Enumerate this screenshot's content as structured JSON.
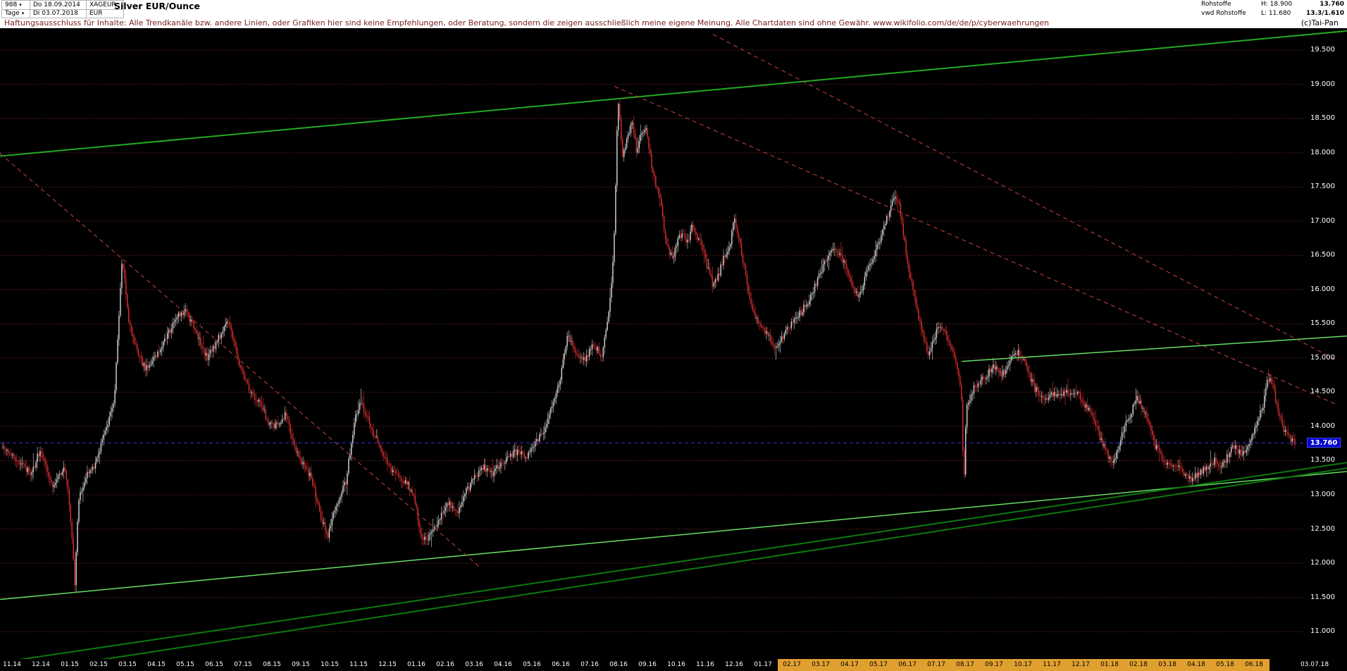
{
  "header": {
    "bars_count": "988",
    "date_from": "Do 18.09.2014",
    "symbol": "XAGEUR",
    "period": "Tage",
    "date_to": "Di 03.07.2018",
    "currency": "EUR",
    "title": "Silver EUR/Ounce",
    "right": {
      "line1": {
        "label": "Rohstoffe",
        "high": "H: 18.900",
        "value": "13.760"
      },
      "line2": {
        "label": "vwd Rohstoffe",
        "low": "L: 11.680",
        "value": "13.3/1.610"
      }
    }
  },
  "disclaimer": {
    "text": "Haftungsausschluss für Inhalte: Alle Trendkanäle bzw. andere Linien, oder Grafiken hier sind keine Empfehlungen, oder Beratung, sondern die zeigen ausschließlich meine eigene Meinung. Alle Chartdaten sind ohne Gewähr.",
    "url": "www.wikifolio.com/de/de/p/cyberwaehrungen",
    "copyright": "(c)Tai-Pan"
  },
  "chart_data": {
    "type": "candlestick",
    "title": "Silver EUR/Ounce",
    "timeframe": "Tage",
    "date_range": [
      "18.09.2014",
      "03.07.2018"
    ],
    "high": 18.9,
    "low": 11.68,
    "last_price": 13.76,
    "last_price_label": "13.760",
    "ylim": [
      10.6,
      19.82
    ],
    "grid": true,
    "y_ticks": [
      19.5,
      19.0,
      18.5,
      18.0,
      17.5,
      17.0,
      16.5,
      16.0,
      15.5,
      15.0,
      14.5,
      14.0,
      13.5,
      13.0,
      12.5,
      12.0,
      11.5,
      11.0
    ],
    "y_tick_labels": [
      "19.500",
      "19.000",
      "18.500",
      "18.000",
      "17.500",
      "17.000",
      "16.500",
      "16.000",
      "15.500",
      "15.000",
      "14.500",
      "14.000",
      "13.500",
      "13.000",
      "12.500",
      "12.000",
      "11.500",
      "11.000"
    ],
    "x_labels": [
      "11.14",
      "12.14",
      "01.15",
      "02.15",
      "03.15",
      "04.15",
      "05.15",
      "06.15",
      "07.15",
      "08.15",
      "09.15",
      "10.15",
      "11.15",
      "12.15",
      "01.16",
      "02.16",
      "03.16",
      "04.16",
      "05.16",
      "06.16",
      "07.16",
      "08.16",
      "09.16",
      "10.16",
      "11.16",
      "12.16",
      "01.17",
      "02.17",
      "03.17",
      "04.17",
      "05.17",
      "06.17",
      "07.17",
      "08.17",
      "09.17",
      "10.17",
      "11.17",
      "12.17",
      "01.18",
      "02.18",
      "03.18",
      "04.18",
      "05.18",
      "06.18"
    ],
    "x_end_label": "03.07.18",
    "x_highlight_from": 27,
    "price_path": [
      [
        0.0,
        13.7
      ],
      [
        0.012,
        13.5
      ],
      [
        0.0219,
        13.3
      ],
      [
        0.0286,
        13.65
      ],
      [
        0.0385,
        13.15
      ],
      [
        0.0485,
        13.4
      ],
      [
        0.0538,
        12.3
      ],
      [
        0.0558,
        11.68
      ],
      [
        0.0584,
        12.9
      ],
      [
        0.0651,
        13.3
      ],
      [
        0.0717,
        13.45
      ],
      [
        0.0797,
        13.95
      ],
      [
        0.0863,
        14.4
      ],
      [
        0.0923,
        16.48
      ],
      [
        0.0969,
        15.6
      ],
      [
        0.1036,
        15.1
      ],
      [
        0.1102,
        14.85
      ],
      [
        0.1169,
        15.0
      ],
      [
        0.1262,
        15.3
      ],
      [
        0.1348,
        15.6
      ],
      [
        0.1414,
        15.68
      ],
      [
        0.1501,
        15.35
      ],
      [
        0.158,
        15.0
      ],
      [
        0.166,
        15.25
      ],
      [
        0.1746,
        15.58
      ],
      [
        0.1833,
        14.9
      ],
      [
        0.1912,
        14.5
      ],
      [
        0.1992,
        14.35
      ],
      [
        0.2058,
        14.05
      ],
      [
        0.2125,
        14.0
      ],
      [
        0.2191,
        14.2
      ],
      [
        0.2258,
        13.7
      ],
      [
        0.2324,
        13.45
      ],
      [
        0.239,
        13.25
      ],
      [
        0.2457,
        12.7
      ],
      [
        0.2517,
        12.4
      ],
      [
        0.2576,
        12.85
      ],
      [
        0.2656,
        13.2
      ],
      [
        0.2722,
        14.1
      ],
      [
        0.2775,
        14.35
      ],
      [
        0.2855,
        13.95
      ],
      [
        0.2921,
        13.7
      ],
      [
        0.2988,
        13.4
      ],
      [
        0.3054,
        13.25
      ],
      [
        0.3121,
        13.2
      ],
      [
        0.3187,
        12.95
      ],
      [
        0.3247,
        12.3
      ],
      [
        0.332,
        12.45
      ],
      [
        0.3386,
        12.7
      ],
      [
        0.3453,
        12.88
      ],
      [
        0.3519,
        12.75
      ],
      [
        0.3586,
        13.05
      ],
      [
        0.3652,
        13.25
      ],
      [
        0.3719,
        13.42
      ],
      [
        0.3785,
        13.3
      ],
      [
        0.3851,
        13.45
      ],
      [
        0.3918,
        13.58
      ],
      [
        0.3984,
        13.64
      ],
      [
        0.4051,
        13.55
      ],
      [
        0.4117,
        13.76
      ],
      [
        0.4184,
        13.9
      ],
      [
        0.425,
        14.32
      ],
      [
        0.4316,
        14.7
      ],
      [
        0.4369,
        15.33
      ],
      [
        0.4436,
        15.1
      ],
      [
        0.4502,
        14.95
      ],
      [
        0.4568,
        15.2
      ],
      [
        0.4635,
        15.05
      ],
      [
        0.4688,
        15.6
      ],
      [
        0.4728,
        16.5
      ],
      [
        0.4761,
        18.85
      ],
      [
        0.4794,
        17.95
      ],
      [
        0.4834,
        18.2
      ],
      [
        0.4874,
        18.45
      ],
      [
        0.4907,
        18.0
      ],
      [
        0.4947,
        18.3
      ],
      [
        0.498,
        18.4
      ],
      [
        0.5013,
        17.9
      ],
      [
        0.5053,
        17.55
      ],
      [
        0.5093,
        17.3
      ],
      [
        0.5113,
        16.95
      ],
      [
        0.5153,
        16.55
      ],
      [
        0.5186,
        16.45
      ],
      [
        0.5219,
        16.7
      ],
      [
        0.5259,
        16.85
      ],
      [
        0.5299,
        16.7
      ],
      [
        0.5339,
        16.95
      ],
      [
        0.5379,
        16.75
      ],
      [
        0.5418,
        16.6
      ],
      [
        0.5458,
        16.3
      ],
      [
        0.5498,
        16.05
      ],
      [
        0.5538,
        16.2
      ],
      [
        0.5578,
        16.45
      ],
      [
        0.5618,
        16.55
      ],
      [
        0.5664,
        17.05
      ],
      [
        0.5711,
        16.6
      ],
      [
        0.5764,
        16.05
      ],
      [
        0.5817,
        15.6
      ],
      [
        0.587,
        15.45
      ],
      [
        0.5923,
        15.35
      ],
      [
        0.5976,
        15.1
      ],
      [
        0.6029,
        15.3
      ],
      [
        0.6082,
        15.45
      ],
      [
        0.6135,
        15.58
      ],
      [
        0.6188,
        15.7
      ],
      [
        0.6242,
        15.85
      ],
      [
        0.6295,
        16.1
      ],
      [
        0.6348,
        16.35
      ],
      [
        0.6401,
        16.52
      ],
      [
        0.6454,
        16.58
      ],
      [
        0.6507,
        16.4
      ],
      [
        0.656,
        16.15
      ],
      [
        0.6613,
        15.9
      ],
      [
        0.6653,
        16.05
      ],
      [
        0.6693,
        16.3
      ],
      [
        0.6733,
        16.45
      ],
      [
        0.6786,
        16.7
      ],
      [
        0.6826,
        16.95
      ],
      [
        0.6866,
        17.15
      ],
      [
        0.6899,
        17.4
      ],
      [
        0.6932,
        17.3
      ],
      [
        0.6972,
        16.8
      ],
      [
        0.7012,
        16.3
      ],
      [
        0.7052,
        15.9
      ],
      [
        0.7092,
        15.55
      ],
      [
        0.7131,
        15.25
      ],
      [
        0.7165,
        15.02
      ],
      [
        0.7211,
        15.3
      ],
      [
        0.7251,
        15.5
      ],
      [
        0.7291,
        15.38
      ],
      [
        0.7331,
        15.2
      ],
      [
        0.7371,
        14.95
      ],
      [
        0.7404,
        14.7
      ],
      [
        0.7424,
        14.35
      ],
      [
        0.7437,
        13.02
      ],
      [
        0.7457,
        14.3
      ],
      [
        0.751,
        14.55
      ],
      [
        0.7557,
        14.65
      ],
      [
        0.7603,
        14.72
      ],
      [
        0.765,
        14.85
      ],
      [
        0.7689,
        14.88
      ],
      [
        0.7729,
        14.75
      ],
      [
        0.7769,
        14.85
      ],
      [
        0.7809,
        15.0
      ],
      [
        0.7855,
        15.08
      ],
      [
        0.7902,
        14.95
      ],
      [
        0.7942,
        14.75
      ],
      [
        0.7988,
        14.55
      ],
      [
        0.8035,
        14.45
      ],
      [
        0.8081,
        14.38
      ],
      [
        0.8128,
        14.48
      ],
      [
        0.8174,
        14.42
      ],
      [
        0.8221,
        14.5
      ],
      [
        0.8267,
        14.45
      ],
      [
        0.8314,
        14.52
      ],
      [
        0.836,
        14.35
      ],
      [
        0.8407,
        14.25
      ],
      [
        0.8453,
        14.05
      ],
      [
        0.85,
        13.8
      ],
      [
        0.8546,
        13.6
      ],
      [
        0.8593,
        13.45
      ],
      [
        0.8639,
        13.7
      ],
      [
        0.8686,
        14.05
      ],
      [
        0.8732,
        14.2
      ],
      [
        0.8779,
        14.4
      ],
      [
        0.8825,
        14.25
      ],
      [
        0.8872,
        14.05
      ],
      [
        0.8918,
        13.72
      ],
      [
        0.8964,
        13.58
      ],
      [
        0.9011,
        13.46
      ],
      [
        0.9057,
        13.42
      ],
      [
        0.9104,
        13.38
      ],
      [
        0.915,
        13.28
      ],
      [
        0.9197,
        13.22
      ],
      [
        0.9243,
        13.3
      ],
      [
        0.929,
        13.35
      ],
      [
        0.9336,
        13.42
      ],
      [
        0.9383,
        13.5
      ],
      [
        0.9429,
        13.42
      ],
      [
        0.9476,
        13.55
      ],
      [
        0.9522,
        13.7
      ],
      [
        0.9568,
        13.64
      ],
      [
        0.9615,
        13.58
      ],
      [
        0.9661,
        13.82
      ],
      [
        0.9708,
        14.08
      ],
      [
        0.9754,
        14.3
      ],
      [
        0.9794,
        14.72
      ],
      [
        0.9834,
        14.55
      ],
      [
        0.9874,
        14.2
      ],
      [
        0.9914,
        13.95
      ],
      [
        0.9954,
        13.85
      ],
      [
        1.0,
        13.76
      ]
    ],
    "trend_lines": [
      {
        "name": "upper-channel-line",
        "color": "#22aa22",
        "width": 2,
        "dash": "",
        "from": [
          0.0,
          17.95
        ],
        "to": [
          1.039,
          19.78
        ]
      },
      {
        "name": "lower-support-line",
        "color": "#66dd66",
        "width": 1.5,
        "dash": "",
        "from": [
          0.0,
          11.47
        ],
        "to": [
          1.039,
          13.34
        ]
      },
      {
        "name": "fan-line-1",
        "color": "#0c7a0c",
        "width": 2,
        "dash": "",
        "from": [
          0.023,
          10.43
        ],
        "to": [
          1.039,
          13.39
        ]
      },
      {
        "name": "fan-line-2",
        "color": "#0c7a0c",
        "width": 2,
        "dash": "",
        "from": [
          0.0,
          10.55
        ],
        "to": [
          1.039,
          13.47
        ]
      },
      {
        "name": "resistance-line",
        "color": "#66dd66",
        "width": 1.5,
        "dash": "",
        "from": [
          0.742,
          14.95
        ],
        "to": [
          1.039,
          15.32
        ]
      },
      {
        "name": "falling-trendline-1",
        "color": "#cc4444",
        "width": 1,
        "dash": "6,5",
        "from": [
          0.0,
          17.99
        ],
        "to": [
          0.371,
          11.93
        ]
      },
      {
        "name": "falling-trendline-2",
        "color": "#cc4444",
        "width": 1,
        "dash": "6,5",
        "from": [
          0.474,
          18.97
        ],
        "to": [
          1.031,
          14.32
        ]
      },
      {
        "name": "falling-trendline-3",
        "color": "#cc4444",
        "width": 1,
        "dash": "6,5",
        "from": [
          0.55,
          19.73
        ],
        "to": [
          1.031,
          14.97
        ]
      }
    ],
    "colors": {
      "background": "#000000",
      "grid": "#993333",
      "up_candle": "#dcdcdc",
      "down_candle": "#e03030",
      "last_price_line": "#3333dd",
      "last_price_box": "#0000cc",
      "axis_text": "#ffffff",
      "x_highlight": "#e0a030",
      "disclaimer_text": "#7b2121"
    },
    "layout": {
      "render_bars": 935,
      "seed": 13,
      "noise": 0.1
    }
  }
}
